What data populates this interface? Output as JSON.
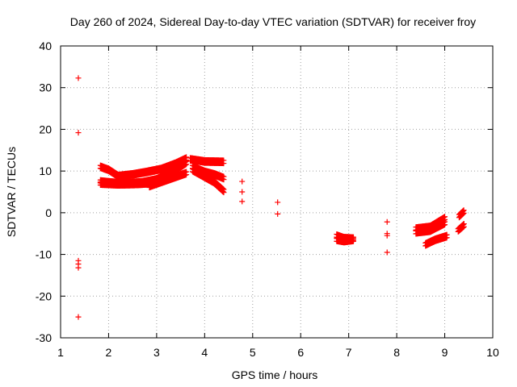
{
  "chart_data": {
    "type": "scatter",
    "title": "Day 260 of 2024, Sidereal Day-to-day VTEC variation (SDTVAR) for receiver froy",
    "xlabel": "GPS time / hours",
    "ylabel": "SDTVAR / TECUs",
    "xlim": [
      1,
      10
    ],
    "ylim": [
      -30,
      40
    ],
    "x_ticks": [
      1,
      2,
      3,
      4,
      5,
      6,
      7,
      8,
      9,
      10
    ],
    "y_ticks": [
      -30,
      -20,
      -10,
      0,
      10,
      20,
      30,
      40
    ],
    "grid": true,
    "marker": "+",
    "color": "#ff0000",
    "isolated_points": [
      {
        "x": 1.37,
        "y": 32.3
      },
      {
        "x": 1.37,
        "y": 19.2
      },
      {
        "x": 1.37,
        "y": -11.5
      },
      {
        "x": 1.37,
        "y": -12.3
      },
      {
        "x": 1.37,
        "y": -13.2
      },
      {
        "x": 1.37,
        "y": -25.0
      },
      {
        "x": 4.78,
        "y": 7.5
      },
      {
        "x": 4.78,
        "y": 5.0
      },
      {
        "x": 4.78,
        "y": 2.7
      },
      {
        "x": 5.52,
        "y": 2.5
      },
      {
        "x": 5.52,
        "y": -0.3
      },
      {
        "x": 7.8,
        "y": -2.2
      },
      {
        "x": 7.8,
        "y": -5.0
      },
      {
        "x": 7.8,
        "y": -5.5
      },
      {
        "x": 7.8,
        "y": -9.5
      }
    ],
    "tracks": [
      {
        "name": "arc-1",
        "x_start": 1.83,
        "x_end": 3.62,
        "points": [
          [
            1.83,
            11.0
          ],
          [
            2.0,
            10.3
          ],
          [
            2.2,
            8.8
          ],
          [
            2.5,
            9.2
          ],
          [
            2.8,
            9.8
          ],
          [
            3.1,
            10.5
          ],
          [
            3.4,
            11.8
          ],
          [
            3.62,
            13.0
          ]
        ]
      },
      {
        "name": "arc-2",
        "x_start": 1.83,
        "x_end": 3.62,
        "points": [
          [
            1.83,
            7.5
          ],
          [
            2.0,
            7.3
          ],
          [
            2.3,
            7.0
          ],
          [
            2.7,
            7.3
          ],
          [
            3.0,
            8.0
          ],
          [
            3.3,
            9.6
          ],
          [
            3.62,
            12.0
          ]
        ]
      },
      {
        "name": "arc-3",
        "x_start": 1.83,
        "x_end": 3.0,
        "points": [
          [
            1.83,
            7.0
          ],
          [
            2.2,
            6.8
          ],
          [
            2.6,
            6.9
          ],
          [
            3.0,
            7.2
          ]
        ]
      },
      {
        "name": "arc-4",
        "x_start": 2.85,
        "x_end": 3.62,
        "points": [
          [
            2.85,
            6.4
          ],
          [
            3.1,
            7.4
          ],
          [
            3.4,
            8.6
          ],
          [
            3.62,
            9.5
          ]
        ]
      },
      {
        "name": "arc-5",
        "x_start": 3.7,
        "x_end": 4.4,
        "points": [
          [
            3.7,
            12.8
          ],
          [
            4.0,
            12.3
          ],
          [
            4.4,
            12.2
          ]
        ]
      },
      {
        "name": "arc-6",
        "x_start": 3.75,
        "x_end": 4.4,
        "points": [
          [
            3.75,
            11.0
          ],
          [
            4.0,
            9.8
          ],
          [
            4.2,
            9.2
          ],
          [
            4.4,
            8.3
          ]
        ]
      },
      {
        "name": "arc-7",
        "x_start": 3.75,
        "x_end": 4.4,
        "points": [
          [
            3.75,
            10.2
          ],
          [
            4.0,
            8.6
          ],
          [
            4.2,
            7.3
          ],
          [
            4.4,
            5.2
          ]
        ]
      },
      {
        "name": "arc-8",
        "x_start": 6.75,
        "x_end": 7.1,
        "points": [
          [
            6.75,
            -5.5
          ],
          [
            6.9,
            -6.1
          ],
          [
            7.1,
            -6.2
          ]
        ]
      },
      {
        "name": "arc-9",
        "x_start": 6.75,
        "x_end": 7.1,
        "points": [
          [
            6.75,
            -6.5
          ],
          [
            6.9,
            -6.8
          ],
          [
            7.1,
            -6.5
          ]
        ]
      },
      {
        "name": "arc-10",
        "x_start": 8.4,
        "x_end": 9.0,
        "points": [
          [
            8.4,
            -3.8
          ],
          [
            8.7,
            -3.4
          ],
          [
            9.0,
            -1.3
          ]
        ]
      },
      {
        "name": "arc-11",
        "x_start": 8.4,
        "x_end": 9.0,
        "points": [
          [
            8.4,
            -4.7
          ],
          [
            8.7,
            -4.3
          ],
          [
            9.0,
            -2.5
          ]
        ]
      },
      {
        "name": "arc-12",
        "x_start": 8.6,
        "x_end": 9.05,
        "points": [
          [
            8.6,
            -7.6
          ],
          [
            8.8,
            -6.5
          ],
          [
            9.05,
            -5.6
          ]
        ]
      },
      {
        "name": "arc-13",
        "x_start": 9.3,
        "x_end": 9.4,
        "points": [
          [
            9.3,
            -0.8
          ],
          [
            9.4,
            0.3
          ]
        ]
      },
      {
        "name": "arc-14",
        "x_start": 9.28,
        "x_end": 9.4,
        "points": [
          [
            9.28,
            -4.2
          ],
          [
            9.4,
            -3.0
          ]
        ]
      }
    ]
  }
}
